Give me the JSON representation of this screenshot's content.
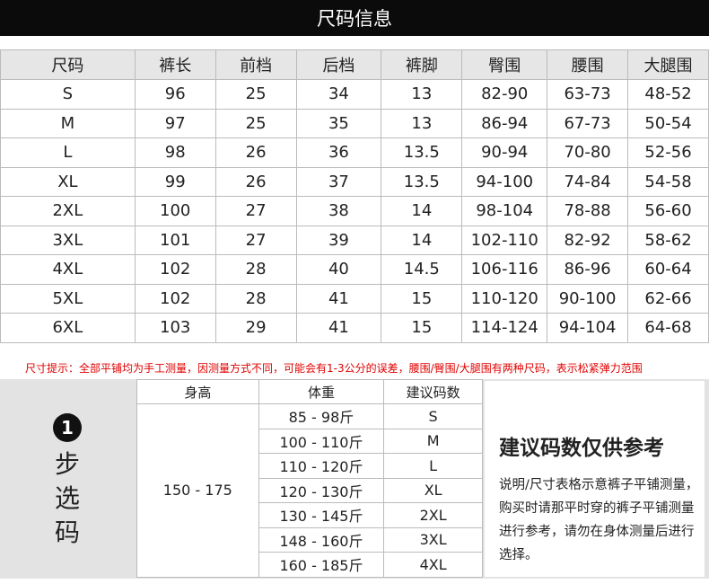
{
  "title": "尺码信息",
  "size_table": {
    "headers": [
      "尺码",
      "裤长",
      "前档",
      "后档",
      "裤脚",
      "臀围",
      "腰围",
      "大腿围"
    ],
    "rows": [
      [
        "S",
        "96",
        "25",
        "34",
        "13",
        "82-90",
        "63-73",
        "48-52"
      ],
      [
        "M",
        "97",
        "25",
        "35",
        "13",
        "86-94",
        "67-73",
        "50-54"
      ],
      [
        "L",
        "98",
        "26",
        "36",
        "13.5",
        "90-94",
        "70-80",
        "52-56"
      ],
      [
        "XL",
        "99",
        "26",
        "37",
        "13.5",
        "94-100",
        "74-84",
        "54-58"
      ],
      [
        "2XL",
        "100",
        "27",
        "38",
        "14",
        "98-104",
        "78-88",
        "56-60"
      ],
      [
        "3XL",
        "101",
        "27",
        "39",
        "14",
        "102-110",
        "82-92",
        "58-62"
      ],
      [
        "4XL",
        "102",
        "28",
        "40",
        "14.5",
        "106-116",
        "86-96",
        "60-64"
      ],
      [
        "5XL",
        "102",
        "28",
        "41",
        "15",
        "110-120",
        "90-100",
        "62-66"
      ],
      [
        "6XL",
        "103",
        "29",
        "41",
        "15",
        "114-124",
        "94-104",
        "64-68"
      ]
    ]
  },
  "tip": "尺寸提示：全部平铺均为手工测量，因测量方式不同，可能会有1-3公分的误差，腰围/臀围/大腿围有两种尺码，表示松紧弹力范围",
  "step": {
    "number": "1",
    "label": [
      "步",
      "选",
      "码"
    ]
  },
  "recommend": {
    "headers": [
      "身高",
      "体重",
      "建议码数"
    ],
    "height": "150 - 175",
    "rows": [
      [
        "85 - 98斤",
        "S"
      ],
      [
        "100 - 110斤",
        "M"
      ],
      [
        "110 - 120斤",
        "L"
      ],
      [
        "120 - 130斤",
        "XL"
      ],
      [
        "130 - 145斤",
        "2XL"
      ],
      [
        "148 - 160斤",
        "3XL"
      ],
      [
        "160 - 185斤",
        "4XL"
      ]
    ]
  },
  "note": {
    "heading": "建议码数仅供参考",
    "text": "说明/尺寸表格示意裤子平铺测量，购买时请那平时穿的裤子平铺测量进行参考，请勿在身体测量后进行选择。"
  }
}
